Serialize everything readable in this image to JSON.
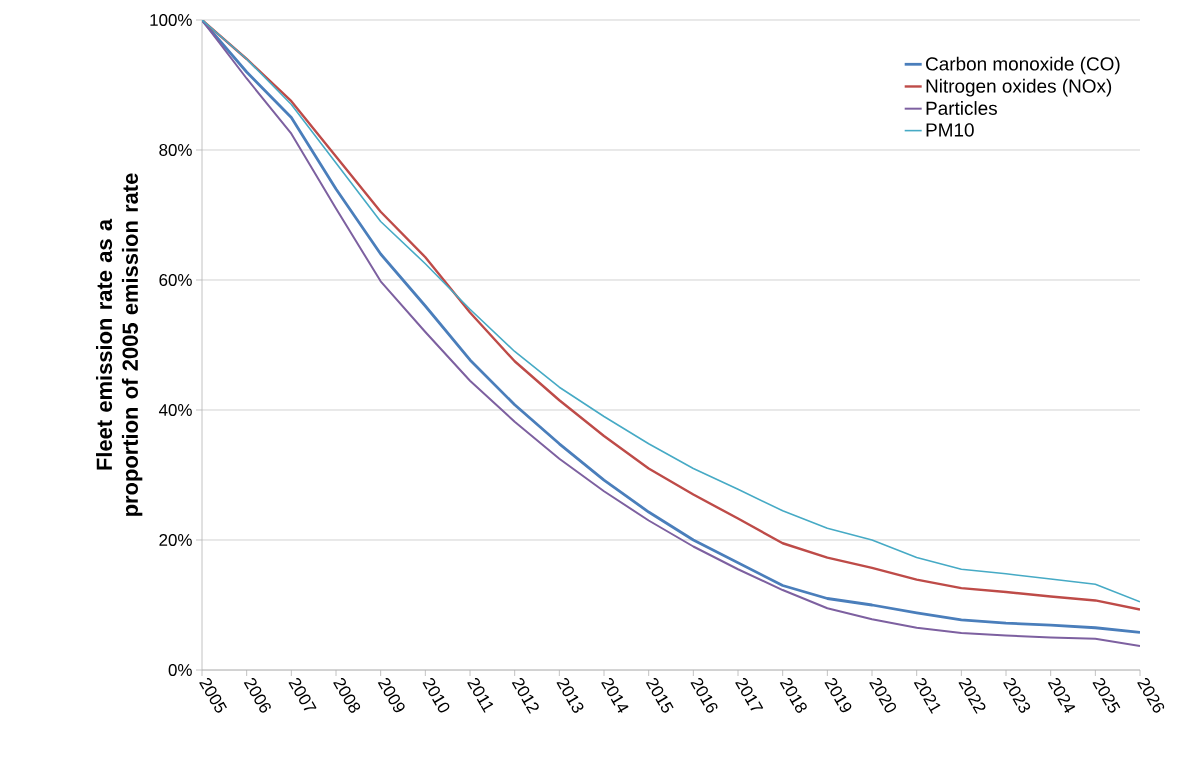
{
  "chart_data": {
    "type": "line",
    "ylabel": "Fleet emission rate as a proportion of 2005 emission rate",
    "categories": [
      "2005",
      "2006",
      "2007",
      "2008",
      "2009",
      "2010",
      "2011",
      "2012",
      "2013",
      "2014",
      "2015",
      "2016",
      "2017",
      "2018",
      "2019",
      "2020",
      "2021",
      "2022",
      "2023",
      "2024",
      "2025",
      "2026"
    ],
    "series": [
      {
        "name": "Carbon monoxide (CO)",
        "color": "#4a7ebb",
        "values": [
          100,
          92,
          85,
          74,
          64,
          56,
          47.7,
          40.8,
          34.8,
          29.2,
          24.3,
          20,
          16.5,
          13,
          11,
          10,
          8.8,
          7.7,
          7.2,
          6.9,
          6.5,
          5.8
        ]
      },
      {
        "name": "Nitrogen oxides (NOx)",
        "color": "#be4b48",
        "values": [
          100,
          94,
          87.5,
          79,
          70.5,
          63.5,
          55,
          47.5,
          41.5,
          36,
          31,
          27,
          23.3,
          19.5,
          17.3,
          15.7,
          13.9,
          12.6,
          12,
          11.3,
          10.7,
          9.3
        ]
      },
      {
        "name": "Particles",
        "color": "#7d60a0",
        "values": [
          100,
          91,
          82.5,
          71,
          59.8,
          52,
          44.5,
          38.2,
          32.5,
          27.5,
          23,
          19,
          15.5,
          12.3,
          9.5,
          7.8,
          6.5,
          5.7,
          5.3,
          5,
          4.8,
          3.7
        ]
      },
      {
        "name": "PM10",
        "color": "#46aac5",
        "values": [
          100,
          94,
          87,
          78,
          69,
          62.5,
          55.5,
          49,
          43.5,
          39,
          34.8,
          31,
          27.8,
          24.5,
          21.8,
          20,
          17.3,
          15.5,
          14.8,
          14,
          13.2,
          10.5
        ]
      }
    ],
    "ylim": [
      0,
      100
    ],
    "yticks": [
      {
        "value": 0,
        "label": "0%"
      },
      {
        "value": 20,
        "label": "20%"
      },
      {
        "value": 40,
        "label": "40%"
      },
      {
        "value": 60,
        "label": "60%"
      },
      {
        "value": 80,
        "label": "80%"
      },
      {
        "value": 100,
        "label": "100%"
      }
    ],
    "grid": "y",
    "legend": "top right",
    "marker": "none",
    "line_style": "solid"
  }
}
